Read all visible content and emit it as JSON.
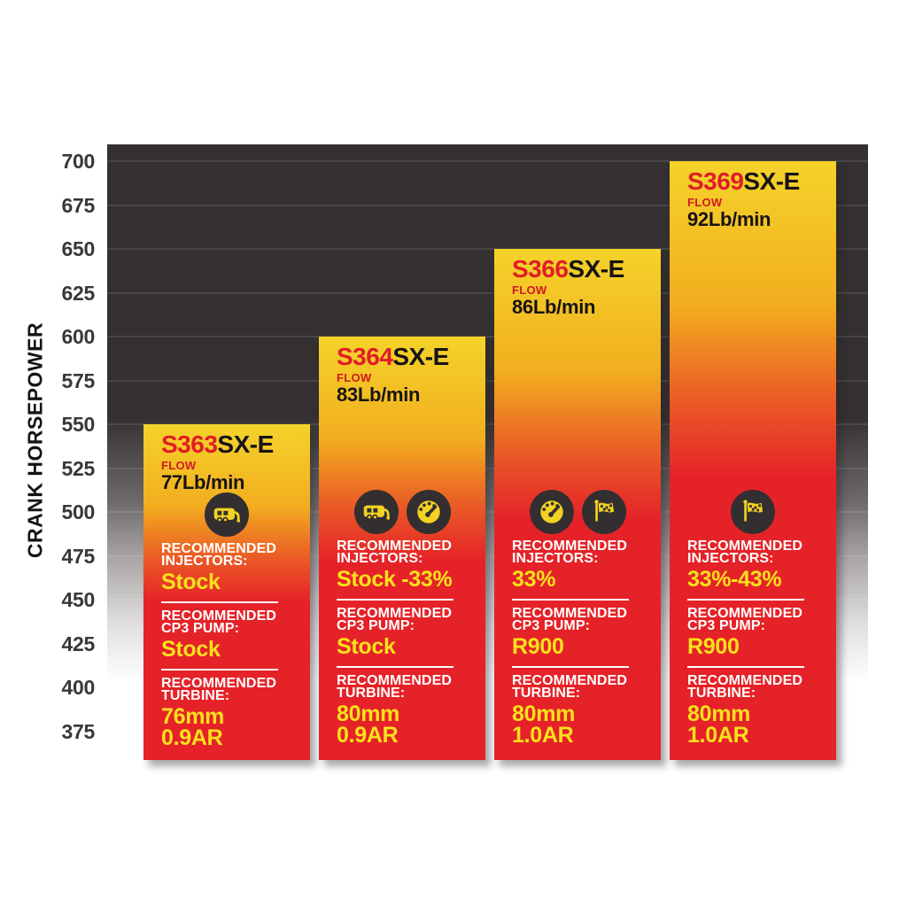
{
  "page": {
    "background": "#ffffff"
  },
  "y_axis": {
    "title": "CRANK HORSEPOWER",
    "ticks": [
      700,
      675,
      650,
      625,
      600,
      575,
      550,
      525,
      500,
      475,
      450,
      425,
      400,
      375
    ]
  },
  "chart_data": {
    "type": "bar",
    "title": "",
    "xlabel": "",
    "ylabel": "CRANK HORSEPOWER",
    "ylim": [
      375,
      700
    ],
    "ytick_step": 25,
    "grid": "horizontal",
    "legend": "none",
    "categories": [
      "S363SX-E",
      "S364SX-E",
      "S366SX-E",
      "S369SX-E"
    ],
    "values": [
      550,
      600,
      650,
      700
    ],
    "labels": {
      "flow": "FLOW",
      "injectors": "RECOMMENDED INJECTORS:",
      "cp3": "RECOMMENDED CP3 PUMP:",
      "turbine": "RECOMMENDED TURBINE:"
    },
    "bars": [
      {
        "model_prefix": "S363",
        "model_suffix": "SX-E",
        "flow": "77Lb/min",
        "horsepower": 550,
        "icons": [
          "camper-icon"
        ],
        "injectors": "Stock",
        "cp3": "Stock",
        "turbine_line1": "76mm",
        "turbine_line2": "0.9AR"
      },
      {
        "model_prefix": "S364",
        "model_suffix": "SX-E",
        "flow": "83Lb/min",
        "horsepower": 600,
        "icons": [
          "camper-icon",
          "gauge-icon"
        ],
        "injectors": "Stock -33%",
        "cp3": "Stock",
        "turbine_line1": "80mm",
        "turbine_line2": "0.9AR"
      },
      {
        "model_prefix": "S366",
        "model_suffix": "SX-E",
        "flow": "86Lb/min",
        "horsepower": 650,
        "icons": [
          "gauge-icon",
          "flag-icon"
        ],
        "injectors": "33%",
        "cp3": "R900",
        "turbine_line1": "80mm",
        "turbine_line2": "1.0AR"
      },
      {
        "model_prefix": "S369",
        "model_suffix": "SX-E",
        "flow": "92Lb/min",
        "horsepower": 700,
        "icons": [
          "flag-icon"
        ],
        "injectors": "33%-43%",
        "cp3": "R900",
        "turbine_line1": "80mm",
        "turbine_line2": "1.0AR"
      }
    ]
  },
  "colors": {
    "bar_top_yellow": "#f4d32a",
    "bar_red": "#e52228",
    "model_number_red": "#e01d26",
    "flow_label_red": "#ce1a23",
    "value_yellow": "#f9e11c",
    "label_white": "#ffffff",
    "plot_background_dark": "#343031",
    "icon_circle": "#332f30",
    "icon_glyph": "#f2d223",
    "axis_text": "#3a3737"
  }
}
